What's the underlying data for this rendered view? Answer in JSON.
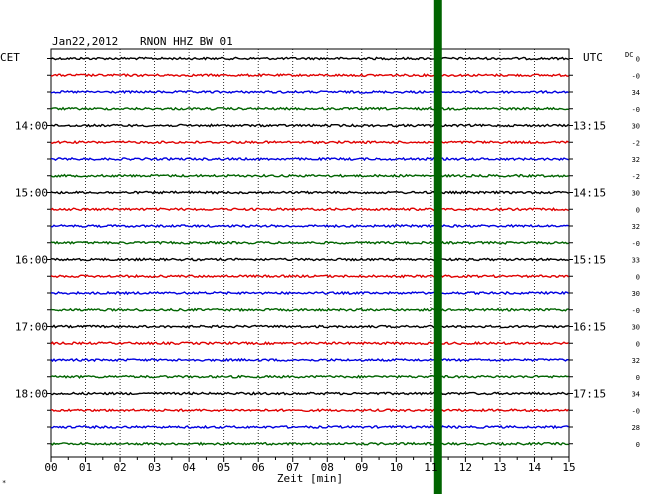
{
  "header": {
    "date": "Jan22,2012",
    "station": "RNON HHZ BW 01",
    "left_zone": "CET",
    "right_zone": "UTC",
    "dc_label": "DC"
  },
  "chart_data": {
    "type": "line",
    "title": "",
    "xlabel": "Zeit [min]",
    "ylabel": "",
    "x_range": [
      0,
      15
    ],
    "x_ticks": [
      "00",
      "01",
      "02",
      "03",
      "04",
      "05",
      "06",
      "07",
      "08",
      "09",
      "10",
      "11",
      "12",
      "13",
      "14",
      "15"
    ],
    "grid": true,
    "trace_colors": [
      "#000000",
      "#e00000",
      "#0000e0",
      "#006400"
    ],
    "traces_count": 24,
    "left_time_labels": [
      {
        "row": 4,
        "text": "14:00"
      },
      {
        "row": 8,
        "text": "15:00"
      },
      {
        "row": 12,
        "text": "16:00"
      },
      {
        "row": 16,
        "text": "17:00"
      },
      {
        "row": 20,
        "text": "18:00"
      }
    ],
    "right_time_labels": [
      {
        "row": 4,
        "text": "13:15"
      },
      {
        "row": 8,
        "text": "14:15"
      },
      {
        "row": 12,
        "text": "15:15"
      },
      {
        "row": 16,
        "text": "16:15"
      },
      {
        "row": 20,
        "text": "17:15"
      }
    ],
    "dc_values": [
      "0",
      "-0",
      "34",
      "-0",
      "30",
      "-2",
      "32",
      "-2",
      "30",
      "0",
      "32",
      "-0",
      "33",
      "0",
      "30",
      "-0",
      "30",
      "0",
      "32",
      "0",
      "34",
      "-0",
      "28",
      "0"
    ],
    "event": {
      "minute": 11.2,
      "color": "#006400",
      "description": "continuous thick band across all traces"
    }
  },
  "footer": {
    "corner_mark": "*"
  }
}
